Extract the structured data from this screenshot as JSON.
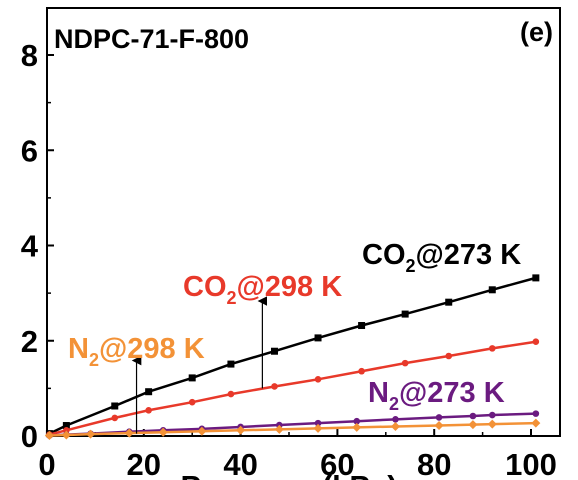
{
  "chart_data": {
    "type": "line",
    "title": "NDPC-71-F-800",
    "panel_label": "(e)",
    "xlabel": "Pressure (kPa)",
    "xlim": [
      0,
      105
    ],
    "ylim": [
      0,
      8.5
    ],
    "xticks": [
      0,
      20,
      40,
      60,
      80,
      100
    ],
    "yticks": [
      0,
      2,
      4,
      6,
      8
    ],
    "grid": false,
    "legend": "inline labels",
    "series": [
      {
        "name": "CO2@273 K",
        "label_main": "CO",
        "label_sub": "2",
        "label_rest": "@273 K",
        "color": "#000000",
        "marker": "square",
        "x": [
          0.5,
          4,
          14,
          21,
          30,
          38,
          47,
          56,
          65,
          74,
          83,
          92,
          101
        ],
        "y": [
          0.05,
          0.22,
          0.63,
          0.93,
          1.22,
          1.51,
          1.78,
          2.06,
          2.32,
          2.56,
          2.81,
          3.07,
          3.32
        ]
      },
      {
        "name": "CO2@298 K",
        "label_main": "CO",
        "label_sub": "2",
        "label_rest": "@298 K",
        "color": "#e8392a",
        "marker": "circle",
        "x": [
          0.5,
          4,
          14,
          21,
          30,
          38,
          47,
          56,
          65,
          74,
          83,
          92,
          101
        ],
        "y": [
          0.03,
          0.12,
          0.38,
          0.54,
          0.71,
          0.88,
          1.04,
          1.19,
          1.36,
          1.53,
          1.68,
          1.84,
          1.98
        ]
      },
      {
        "name": "N2@273 K",
        "label_main": "N",
        "label_sub": "2",
        "label_rest": "@273 K",
        "color": "#6b1b80",
        "marker": "circle",
        "x": [
          0.5,
          4,
          9,
          17,
          24,
          32,
          40,
          48,
          56,
          64,
          72,
          81,
          88,
          92,
          101
        ],
        "y": [
          0.01,
          0.03,
          0.05,
          0.09,
          0.12,
          0.15,
          0.19,
          0.23,
          0.27,
          0.31,
          0.35,
          0.39,
          0.42,
          0.44,
          0.47
        ]
      },
      {
        "name": "N2@298 K",
        "label_main": "N",
        "label_sub": "2",
        "label_rest": "@298 K",
        "color": "#f39237",
        "marker": "diamond",
        "x": [
          0.5,
          4,
          9,
          17,
          24,
          32,
          40,
          48,
          56,
          64,
          72,
          81,
          88,
          92,
          101
        ],
        "y": [
          0.01,
          0.02,
          0.04,
          0.06,
          0.08,
          0.1,
          0.12,
          0.14,
          0.16,
          0.18,
          0.2,
          0.22,
          0.24,
          0.25,
          0.27
        ]
      }
    ],
    "annotation_arrows": [
      {
        "series": "N2@298 K",
        "x": 18.5,
        "y_from": 0.05,
        "y_to": 1.5
      },
      {
        "series": "CO2@298 K",
        "x": 44.5,
        "y_from": 1.0,
        "y_to": 2.75
      }
    ]
  }
}
